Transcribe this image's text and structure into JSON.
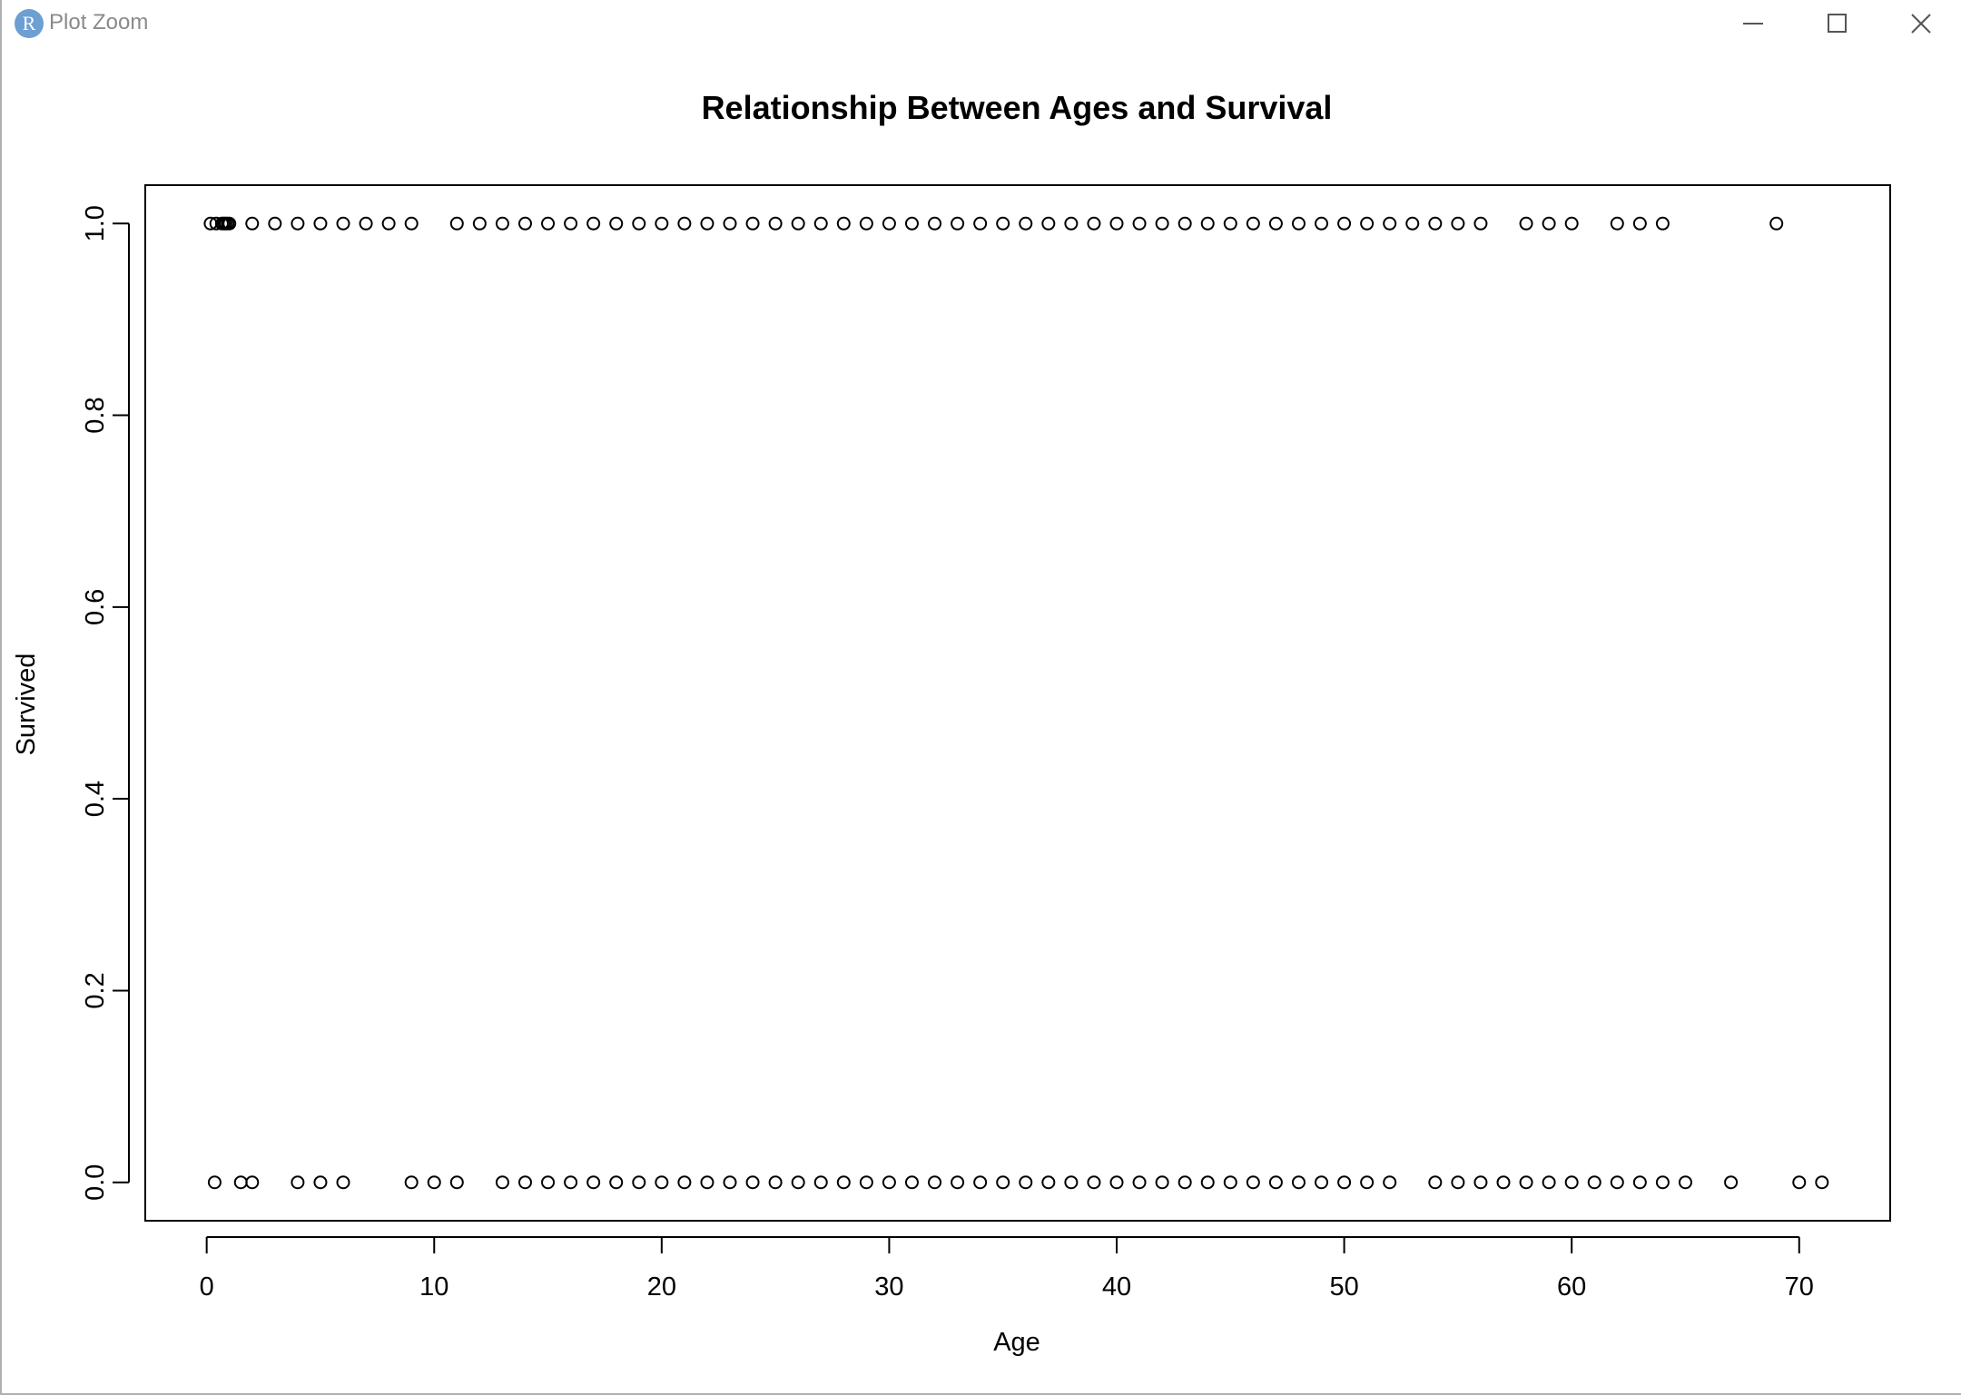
{
  "window": {
    "title": "Plot Zoom",
    "app_icon_letter": "R",
    "controls": {
      "minimize": "minimize-icon",
      "maximize": "maximize-icon",
      "close": "close-icon"
    }
  },
  "chart_data": {
    "type": "scatter",
    "title": "Relationship Between Ages and Survival",
    "xlabel": "Age",
    "ylabel": "Survived",
    "xlim": [
      -2.7,
      74
    ],
    "ylim": [
      -0.04,
      1.04
    ],
    "xticks": [
      0,
      10,
      20,
      30,
      40,
      50,
      60,
      70
    ],
    "yticks": [
      0.0,
      0.2,
      0.4,
      0.6,
      0.8,
      1.0
    ],
    "ytick_labels": [
      "0.0",
      "0.2",
      "0.4",
      "0.6",
      "0.8",
      "1.0"
    ],
    "grid": false,
    "marker": "open-circle",
    "series": [
      {
        "y": 1.0,
        "x": [
          0.17,
          0.42,
          0.67,
          0.75,
          0.83,
          0.92,
          1,
          2,
          3,
          4,
          5,
          6,
          7,
          8,
          9,
          11,
          12,
          13,
          14,
          15,
          16,
          17,
          18,
          19,
          20,
          21,
          22,
          23,
          24,
          25,
          26,
          27,
          28,
          29,
          30,
          31,
          32,
          33,
          34,
          35,
          36,
          37,
          38,
          39,
          40,
          41,
          42,
          43,
          44,
          45,
          46,
          47,
          48,
          49,
          50,
          51,
          52,
          53,
          54,
          55,
          56,
          58,
          59,
          60,
          62,
          63,
          64,
          69
        ]
      },
      {
        "y": 0.0,
        "x": [
          0.35,
          1.5,
          2,
          4,
          5,
          6,
          9,
          10,
          11,
          13,
          14,
          15,
          16,
          17,
          18,
          19,
          20,
          21,
          22,
          23,
          24,
          25,
          26,
          27,
          28,
          29,
          30,
          31,
          32,
          33,
          34,
          35,
          36,
          37,
          38,
          39,
          40,
          41,
          42,
          43,
          44,
          45,
          46,
          47,
          48,
          49,
          50,
          51,
          52,
          54,
          55,
          56,
          57,
          58,
          59,
          60,
          61,
          62,
          63,
          64,
          65,
          67,
          70,
          71
        ]
      }
    ]
  }
}
